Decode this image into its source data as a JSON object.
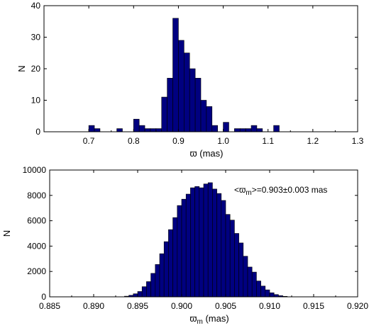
{
  "chart_data": [
    {
      "type": "bar",
      "xlabel": "ϖ (mas)",
      "ylabel": "N",
      "xlim": [
        0.6,
        1.3
      ],
      "ylim": [
        0,
        40
      ],
      "xticks": [
        "0.7",
        "0.8",
        "0.9",
        "1.0",
        "1.1",
        "1.2",
        "1.3"
      ],
      "yticks": [
        "0",
        "10",
        "20",
        "30",
        "40"
      ],
      "bin_width": 0.0125,
      "bins": [
        [
          0.7,
          2
        ],
        [
          0.7125,
          1
        ],
        [
          0.7625,
          1
        ],
        [
          0.8,
          4
        ],
        [
          0.8125,
          2
        ],
        [
          0.825,
          1
        ],
        [
          0.8375,
          1
        ],
        [
          0.85,
          1
        ],
        [
          0.8625,
          11
        ],
        [
          0.875,
          17
        ],
        [
          0.8875,
          36
        ],
        [
          0.9,
          29
        ],
        [
          0.9125,
          25
        ],
        [
          0.925,
          20
        ],
        [
          0.9375,
          17
        ],
        [
          0.95,
          10
        ],
        [
          0.9625,
          8
        ],
        [
          0.975,
          2
        ],
        [
          1.0,
          3
        ],
        [
          1.025,
          1
        ],
        [
          1.0375,
          1
        ],
        [
          1.05,
          1
        ],
        [
          1.0625,
          2
        ],
        [
          1.075,
          1
        ],
        [
          1.1125,
          2
        ]
      ]
    },
    {
      "type": "bar",
      "xlabel": "ϖm (mas)",
      "ylabel": "N",
      "xlim": [
        0.885,
        0.92
      ],
      "ylim": [
        0,
        10000
      ],
      "xticks": [
        "0.885",
        "0.890",
        "0.895",
        "0.900",
        "0.905",
        "0.910",
        "0.915",
        "0.920"
      ],
      "yticks": [
        "0",
        "2000",
        "4000",
        "6000",
        "8000",
        "10000"
      ],
      "bin_width": 0.0005,
      "bins": [
        [
          0.8935,
          50
        ],
        [
          0.894,
          120
        ],
        [
          0.8945,
          240
        ],
        [
          0.895,
          420
        ],
        [
          0.8955,
          800
        ],
        [
          0.896,
          1200
        ],
        [
          0.8965,
          1850
        ],
        [
          0.897,
          2550
        ],
        [
          0.8975,
          3400
        ],
        [
          0.898,
          4350
        ],
        [
          0.8985,
          5300
        ],
        [
          0.899,
          6250
        ],
        [
          0.8995,
          7200
        ],
        [
          0.9,
          7700
        ],
        [
          0.9005,
          8100
        ],
        [
          0.901,
          8600
        ],
        [
          0.9015,
          8700
        ],
        [
          0.902,
          8600
        ],
        [
          0.9025,
          8900
        ],
        [
          0.903,
          9000
        ],
        [
          0.9035,
          8500
        ],
        [
          0.904,
          8150
        ],
        [
          0.9045,
          7600
        ],
        [
          0.905,
          6500
        ],
        [
          0.9055,
          6050
        ],
        [
          0.906,
          5000
        ],
        [
          0.9065,
          4250
        ],
        [
          0.907,
          3200
        ],
        [
          0.9075,
          2350
        ],
        [
          0.908,
          1950
        ],
        [
          0.9085,
          1250
        ],
        [
          0.909,
          850
        ],
        [
          0.9095,
          550
        ],
        [
          0.91,
          320
        ],
        [
          0.9105,
          180
        ],
        [
          0.911,
          90
        ],
        [
          0.9115,
          40
        ]
      ],
      "annotation": "<ϖm>=0.903±0.003 mas"
    }
  ]
}
